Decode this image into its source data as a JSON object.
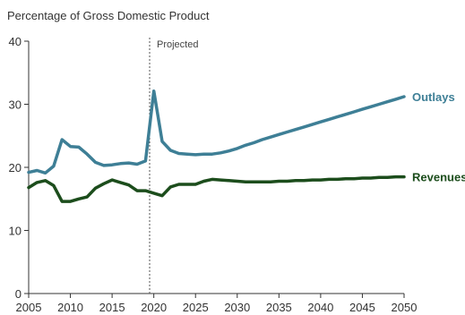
{
  "chart_data": {
    "type": "line",
    "title": "Percentage of Gross Domestic Product",
    "xlabel": "",
    "ylabel": "",
    "xlim": [
      2005,
      2050
    ],
    "ylim": [
      0,
      40
    ],
    "x_ticks": [
      2005,
      2010,
      2015,
      2020,
      2025,
      2030,
      2035,
      2040,
      2045,
      2050
    ],
    "y_ticks": [
      0,
      10,
      20,
      30,
      40
    ],
    "grid": false,
    "annotation": {
      "text": "Projected",
      "x": 2019.5
    },
    "series": [
      {
        "name": "Outlays",
        "color": "#3e7f96",
        "x": [
          2005,
          2006,
          2007,
          2008,
          2009,
          2010,
          2011,
          2012,
          2013,
          2014,
          2015,
          2016,
          2017,
          2018,
          2019,
          2020,
          2021,
          2022,
          2023,
          2024,
          2025,
          2026,
          2027,
          2028,
          2029,
          2030,
          2031,
          2032,
          2033,
          2034,
          2035,
          2036,
          2037,
          2038,
          2039,
          2040,
          2041,
          2042,
          2043,
          2044,
          2045,
          2046,
          2047,
          2048,
          2049,
          2050
        ],
        "values": [
          19.2,
          19.5,
          19.1,
          20.2,
          24.4,
          23.3,
          23.2,
          22.1,
          20.8,
          20.3,
          20.4,
          20.6,
          20.7,
          20.5,
          21.0,
          32.1,
          24.1,
          22.7,
          22.2,
          22.1,
          22.0,
          22.1,
          22.1,
          22.3,
          22.6,
          23.0,
          23.5,
          23.9,
          24.4,
          24.8,
          25.2,
          25.6,
          26.0,
          26.4,
          26.8,
          27.2,
          27.6,
          28.0,
          28.4,
          28.8,
          29.2,
          29.6,
          30.0,
          30.4,
          30.8,
          31.2
        ]
      },
      {
        "name": "Revenues",
        "color": "#1c4d1c",
        "x": [
          2005,
          2006,
          2007,
          2008,
          2009,
          2010,
          2011,
          2012,
          2013,
          2014,
          2015,
          2016,
          2017,
          2018,
          2019,
          2020,
          2021,
          2022,
          2023,
          2024,
          2025,
          2026,
          2027,
          2028,
          2029,
          2030,
          2031,
          2032,
          2033,
          2034,
          2035,
          2036,
          2037,
          2038,
          2039,
          2040,
          2041,
          2042,
          2043,
          2044,
          2045,
          2046,
          2047,
          2048,
          2049,
          2050
        ],
        "values": [
          16.8,
          17.6,
          17.9,
          17.1,
          14.6,
          14.6,
          15.0,
          15.3,
          16.7,
          17.4,
          18.0,
          17.6,
          17.2,
          16.3,
          16.3,
          15.9,
          15.5,
          16.9,
          17.3,
          17.3,
          17.3,
          17.8,
          18.1,
          18.0,
          17.9,
          17.8,
          17.7,
          17.7,
          17.7,
          17.7,
          17.8,
          17.8,
          17.9,
          17.9,
          18.0,
          18.0,
          18.1,
          18.1,
          18.2,
          18.2,
          18.3,
          18.3,
          18.4,
          18.4,
          18.5,
          18.5
        ]
      }
    ]
  }
}
